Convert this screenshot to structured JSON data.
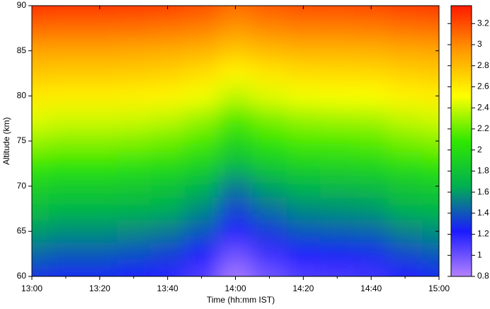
{
  "chart_data": {
    "type": "heatmap",
    "xlabel": "Time (hh:mm IST)",
    "ylabel": "Altitude (km)",
    "x": [
      "13:00",
      "13:10",
      "13:20",
      "13:30",
      "13:40",
      "13:50",
      "14:00",
      "14:10",
      "14:20",
      "14:30",
      "14:40",
      "14:50",
      "15:00"
    ],
    "y": [
      60,
      62.5,
      65,
      67.5,
      70,
      72.5,
      75,
      77.5,
      80,
      82.5,
      85,
      87.5,
      90
    ],
    "z": [
      [
        1.3,
        1.26,
        1.26,
        1.23,
        1.19,
        1.08,
        0.85,
        0.99,
        1.08,
        1.1,
        1.12,
        1.21,
        1.26
      ],
      [
        1.45,
        1.41,
        1.41,
        1.38,
        1.34,
        1.23,
        1.0,
        1.14,
        1.23,
        1.25,
        1.27,
        1.36,
        1.41
      ],
      [
        1.6,
        1.56,
        1.56,
        1.54,
        1.5,
        1.4,
        1.2,
        1.32,
        1.4,
        1.42,
        1.44,
        1.52,
        1.56
      ],
      [
        1.75,
        1.71,
        1.71,
        1.69,
        1.65,
        1.55,
        1.35,
        1.47,
        1.55,
        1.57,
        1.59,
        1.67,
        1.71
      ],
      [
        1.9,
        1.86,
        1.86,
        1.84,
        1.8,
        1.7,
        1.5,
        1.62,
        1.7,
        1.72,
        1.74,
        1.82,
        1.86
      ],
      [
        2.1,
        2.07,
        2.07,
        2.05,
        2.01,
        1.93,
        1.75,
        1.86,
        1.93,
        1.94,
        1.96,
        2.03,
        2.07
      ],
      [
        2.3,
        2.27,
        2.27,
        2.25,
        2.21,
        2.13,
        1.95,
        2.06,
        2.13,
        2.14,
        2.16,
        2.23,
        2.27
      ],
      [
        2.45,
        2.42,
        2.42,
        2.41,
        2.38,
        2.3,
        2.15,
        2.24,
        2.3,
        2.32,
        2.33,
        2.39,
        2.42
      ],
      [
        2.6,
        2.58,
        2.58,
        2.57,
        2.55,
        2.49,
        2.38,
        2.45,
        2.49,
        2.5,
        2.51,
        2.56,
        2.58
      ],
      [
        2.75,
        2.73,
        2.73,
        2.72,
        2.7,
        2.65,
        2.55,
        2.61,
        2.65,
        2.66,
        2.67,
        2.71,
        2.73
      ],
      [
        2.9,
        2.89,
        2.89,
        2.88,
        2.86,
        2.83,
        2.75,
        2.8,
        2.83,
        2.83,
        2.84,
        2.87,
        2.89
      ],
      [
        3.1,
        3.09,
        3.09,
        3.08,
        3.06,
        3.03,
        2.95,
        3.0,
        3.03,
        3.03,
        3.04,
        3.07,
        3.09
      ],
      [
        3.3,
        3.28,
        3.28,
        3.27,
        3.25,
        3.2,
        3.1,
        3.16,
        3.2,
        3.21,
        3.22,
        3.26,
        3.28
      ]
    ],
    "xticks": [
      "13:00",
      "13:20",
      "13:40",
      "14:00",
      "14:20",
      "14:40",
      "15:00"
    ],
    "ylim": [
      60,
      90
    ],
    "yticks": [
      60,
      65,
      70,
      75,
      80,
      85,
      90
    ],
    "zlim": [
      0.8,
      3.37
    ],
    "zticks": [
      0.8,
      1,
      1.2,
      1.4,
      1.6,
      1.8,
      2,
      2.2,
      2.4,
      2.6,
      2.8,
      3,
      3.2
    ],
    "colormap": [
      "#b482ff",
      "#1a1aff",
      "#00b050",
      "#30e800",
      "#ffff00",
      "#ff9a00",
      "#ff1a00"
    ]
  }
}
